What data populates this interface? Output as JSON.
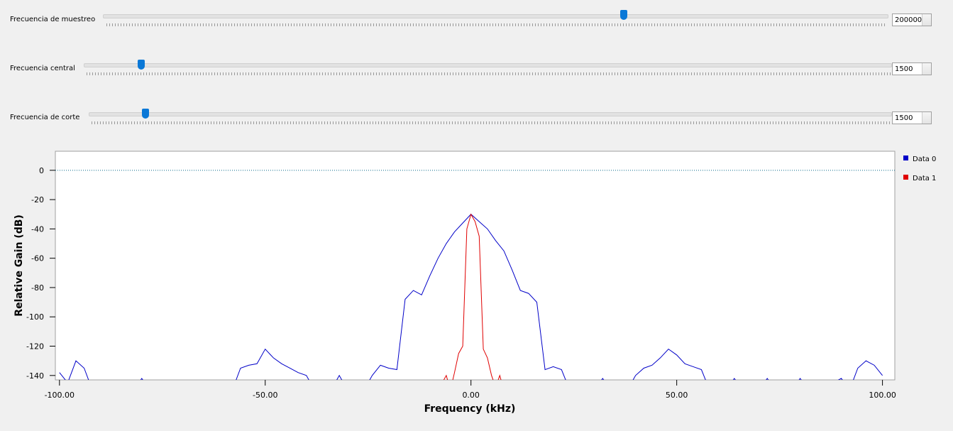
{
  "sliders": [
    {
      "label": "Frecuencia de muestreo",
      "value": "200000"
    },
    {
      "label": "Frecuencia central",
      "value": "1500"
    },
    {
      "label": "Frecuencia de corte",
      "value": "1500"
    }
  ],
  "chart_data": {
    "type": "line",
    "xlabel": "Frequency (kHz)",
    "ylabel": "Relative Gain (dB)",
    "xlim": [
      -101,
      103
    ],
    "ylim": [
      -143,
      13
    ],
    "xticks": [
      {
        "value": -100,
        "label": "-100.00"
      },
      {
        "value": -50,
        "label": "-50.00"
      },
      {
        "value": 0,
        "label": "0.00"
      },
      {
        "value": 50,
        "label": "50.00"
      },
      {
        "value": 100,
        "label": "100.00"
      }
    ],
    "yticks": [
      0,
      -20,
      -40,
      -60,
      -80,
      -100,
      -120,
      -140
    ],
    "reference_line": 0,
    "legend": "right",
    "series": [
      {
        "name": "Data 0",
        "color": "#0000c8",
        "x": [
          -100,
          -98,
          -96,
          -94,
          -92,
          -90,
          -88,
          -86,
          -84,
          -82,
          -80,
          -78,
          -76,
          -74,
          -72,
          -70,
          -68,
          -66,
          -64,
          -62,
          -60,
          -58,
          -56,
          -54,
          -52,
          -50,
          -48,
          -46,
          -44,
          -42,
          -40,
          -38,
          -36,
          -34,
          -32,
          -30,
          -28,
          -26,
          -24,
          -22,
          -20,
          -18,
          -16,
          -14,
          -12,
          -10,
          -8,
          -6,
          -4,
          -2,
          0,
          2,
          4,
          6,
          8,
          10,
          12,
          14,
          16,
          18,
          20,
          22,
          24,
          26,
          28,
          30,
          32,
          34,
          36,
          38,
          40,
          42,
          44,
          46,
          48,
          50,
          52,
          54,
          56,
          58,
          60,
          62,
          64,
          66,
          68,
          70,
          72,
          74,
          76,
          78,
          80,
          82,
          84,
          86,
          88,
          90,
          92,
          94,
          96,
          98,
          100
        ],
        "values": [
          -138,
          -145,
          -130,
          -135,
          -150,
          -145,
          -150,
          -145,
          -150,
          -150,
          -142,
          -150,
          -150,
          -150,
          -145,
          -150,
          -150,
          -150,
          -145,
          -150,
          -150,
          -150,
          -135,
          -133,
          -132,
          -122,
          -128,
          -132,
          -135,
          -138,
          -140,
          -150,
          -150,
          -150,
          -140,
          -150,
          -150,
          -150,
          -140,
          -133,
          -135,
          -136,
          -88,
          -82,
          -85,
          -72,
          -60,
          -50,
          -42,
          -36,
          -30,
          -35,
          -40,
          -48,
          -55,
          -68,
          -82,
          -84,
          -90,
          -136,
          -134,
          -136,
          -150,
          -150,
          -150,
          -150,
          -142,
          -150,
          -150,
          -150,
          -140,
          -135,
          -133,
          -128,
          -122,
          -126,
          -132,
          -134,
          -136,
          -150,
          -150,
          -150,
          -142,
          -150,
          -150,
          -150,
          -142,
          -150,
          -150,
          -150,
          -142,
          -150,
          -150,
          -150,
          -145,
          -142,
          -150,
          -135,
          -130,
          -133,
          -140
        ]
      },
      {
        "name": "Data 1",
        "color": "#e00000",
        "x": [
          -8,
          -7,
          -6,
          -5,
          -4,
          -3,
          -2,
          -1,
          0,
          1,
          2,
          3,
          4,
          5,
          6,
          7,
          8
        ],
        "values": [
          -150,
          -145,
          -140,
          -150,
          -138,
          -125,
          -120,
          -40,
          -30,
          -35,
          -45,
          -122,
          -128,
          -140,
          -148,
          -140,
          -150
        ]
      }
    ]
  }
}
